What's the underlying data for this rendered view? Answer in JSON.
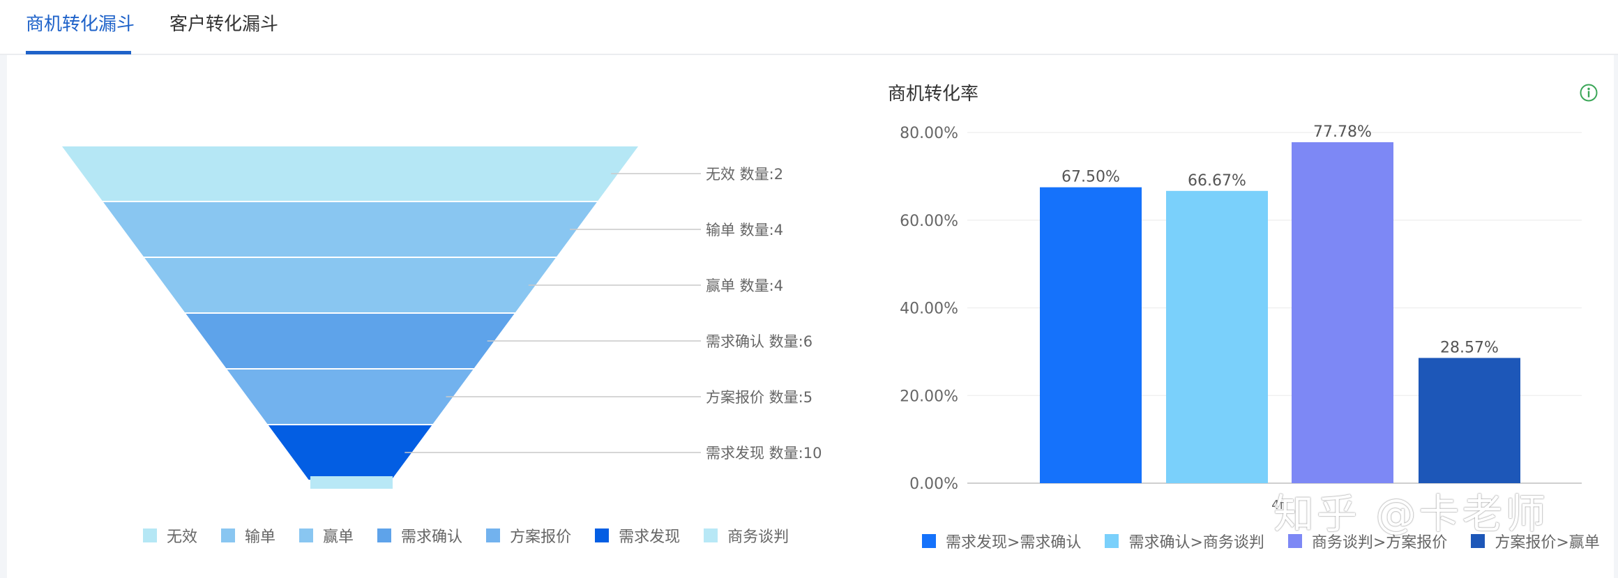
{
  "tabs": [
    {
      "label": "商机转化漏斗",
      "active": true
    },
    {
      "label": "客户转化漏斗",
      "active": false
    }
  ],
  "colors": {
    "accent": "#1e62c9",
    "wuxiao": "#b5e7f5",
    "shudan": "#89c6f1",
    "yingdan": "#89c6f1",
    "xuqiuqueren": "#5ea3ea",
    "fanganbaojia": "#72b2ee",
    "xuqiufaxian": "#035ee3",
    "shangwutanpan": "#b8e8f6"
  },
  "chart_data": [
    {
      "type": "funnel",
      "stages": [
        {
          "name": "无效",
          "value": 2,
          "label": "无效 数量:2",
          "color": "#b5e7f5"
        },
        {
          "name": "输单",
          "value": 4,
          "label": "输单 数量:4",
          "color": "#89c6f1"
        },
        {
          "name": "赢单",
          "value": 4,
          "label": "赢单 数量:4",
          "color": "#89c6f1"
        },
        {
          "name": "需求确认",
          "value": 6,
          "label": "需求确认 数量:6",
          "color": "#5ea3ea"
        },
        {
          "name": "方案报价",
          "value": 5,
          "label": "方案报价 数量:5",
          "color": "#72b2ee"
        },
        {
          "name": "需求发现",
          "value": 10,
          "label": "需求发现 数量:10",
          "color": "#035ee3"
        },
        {
          "name": "商务谈判",
          "value": null,
          "label": "",
          "color": "#b8e8f6"
        }
      ],
      "legend": [
        "无效",
        "输单",
        "赢单",
        "需求确认",
        "方案报价",
        "需求发现",
        "商务谈判"
      ],
      "legend_colors": [
        "#b5e7f5",
        "#89c6f1",
        "#89c6f1",
        "#5ea3ea",
        "#72b2ee",
        "#035ee3",
        "#b8e8f6"
      ]
    },
    {
      "type": "bar",
      "title": "商机转化率",
      "categories": [
        "需求发现>需求确认",
        "需求确认>商务谈判",
        "商务谈判>方案报价",
        "方案报价>赢单"
      ],
      "values": [
        67.5,
        66.67,
        77.78,
        28.57
      ],
      "value_labels": [
        "67.50%",
        "66.67%",
        "77.78%",
        "28.57%"
      ],
      "colors": [
        "#1572fb",
        "#7ad0fb",
        "#7d88f5",
        "#1d57b8"
      ],
      "ylim": [
        0,
        80
      ],
      "yticks": [
        0,
        20,
        40,
        60,
        80
      ],
      "ytick_labels": [
        "0.00%",
        "20.00%",
        "40.00%",
        "60.00%",
        "80.00%"
      ],
      "x_tick_text": "4f",
      "legend_position": "bottom",
      "grid": true
    }
  ],
  "watermark": "知乎 @卡老师",
  "info_icon": "info-circle-icon"
}
